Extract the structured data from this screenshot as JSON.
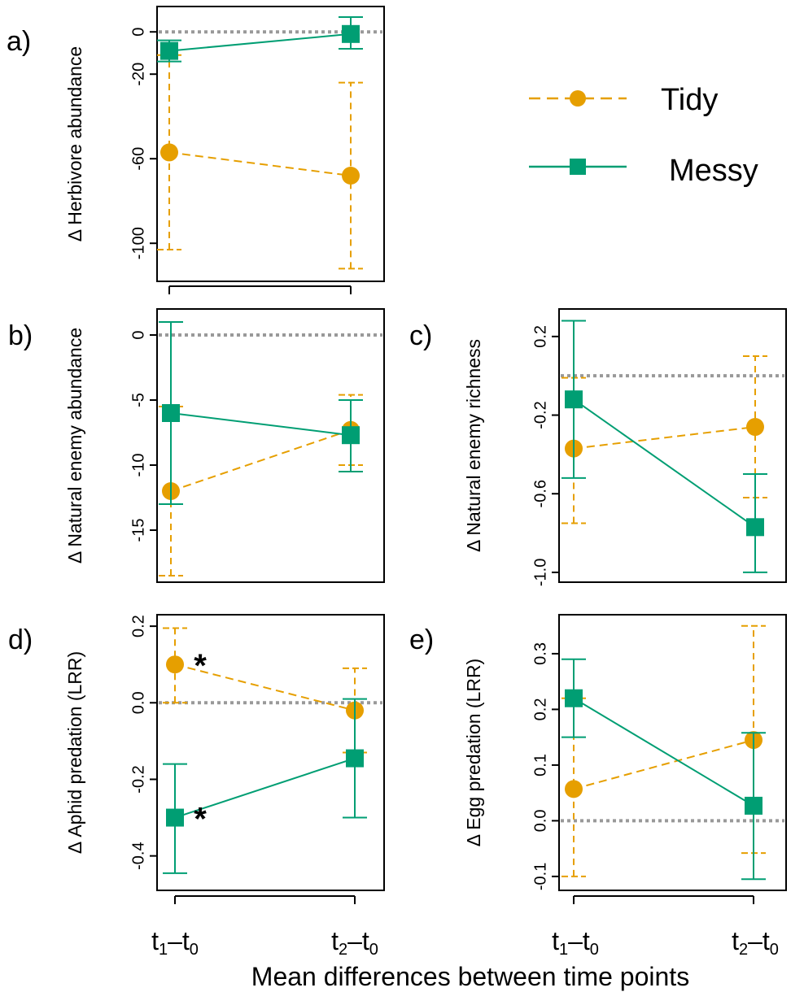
{
  "colors": {
    "tidy": "#E69F00",
    "messy": "#009E73",
    "ref": "#999999",
    "axis": "#000000"
  },
  "legend": {
    "placement": "top-right",
    "entries": [
      {
        "key": "tidy",
        "label": "Tidy",
        "marker": "circle",
        "line": "dashed"
      },
      {
        "key": "messy",
        "label": "Messy",
        "marker": "square",
        "line": "solid"
      }
    ]
  },
  "xaxis": {
    "title": "Mean differences between time points",
    "categories": [
      {
        "main1": "t",
        "sub1": "1",
        "dash": "–",
        "main2": "t",
        "sub2": "0"
      },
      {
        "main1": "t",
        "sub1": "2",
        "dash": "–",
        "main2": "t",
        "sub2": "0"
      }
    ]
  },
  "chart_data": [
    {
      "panel": "a)",
      "type": "line",
      "ylabel": "Δ  Herbivore abundance",
      "ylim": [
        -118,
        12
      ],
      "yticks": [
        0,
        -20,
        -60,
        -100
      ],
      "categories": [
        "t1–t0",
        "t2–t0"
      ],
      "series": [
        {
          "name": "Tidy",
          "values": [
            -57,
            -68
          ],
          "lower": [
            -103,
            -112
          ],
          "upper": [
            -11,
            -24
          ]
        },
        {
          "name": "Messy",
          "values": [
            -9,
            -1
          ],
          "lower": [
            -14,
            -8
          ],
          "upper": [
            -4,
            7
          ]
        }
      ],
      "annotations": []
    },
    {
      "panel": "b)",
      "type": "line",
      "ylabel": "Δ  Natural enemy abundance",
      "ylim": [
        -19,
        2
      ],
      "yticks": [
        0,
        -5,
        -10,
        -15
      ],
      "categories": [
        "t1–t0",
        "t2–t0"
      ],
      "series": [
        {
          "name": "Tidy",
          "values": [
            -12,
            -7.3
          ],
          "lower": [
            -18.5,
            -10
          ],
          "upper": [
            -5.5,
            -4.6
          ]
        },
        {
          "name": "Messy",
          "values": [
            -6,
            -7.7
          ],
          "lower": [
            -13,
            -10.5
          ],
          "upper": [
            1,
            -5
          ]
        }
      ],
      "annotations": []
    },
    {
      "panel": "c)",
      "type": "line",
      "ylabel": "Δ  Natural enemy richness",
      "ylim": [
        -1.05,
        0.34
      ],
      "yticks": [
        0.2,
        -0.2,
        -0.6,
        -1.0
      ],
      "yticklabels": [
        "0.2",
        "-0.2",
        "-0.6",
        "-1.0"
      ],
      "categories": [
        "t1–t0",
        "t2–t0"
      ],
      "series": [
        {
          "name": "Tidy",
          "values": [
            -0.37,
            -0.26
          ],
          "lower": [
            -0.75,
            -0.62
          ],
          "upper": [
            -0.01,
            0.1
          ]
        },
        {
          "name": "Messy",
          "values": [
            -0.12,
            -0.77
          ],
          "lower": [
            -0.52,
            -1.0
          ],
          "upper": [
            0.28,
            -0.5
          ]
        }
      ],
      "annotations": []
    },
    {
      "panel": "d)",
      "type": "line",
      "ylabel": "Δ  Aphid predation (LRR)",
      "ylim": [
        -0.49,
        0.23
      ],
      "yticks": [
        0.2,
        0.0,
        -0.2,
        -0.4
      ],
      "yticklabels": [
        "0.2",
        "0.0",
        "-0.2",
        "-0.4"
      ],
      "categories": [
        "t1–t0",
        "t2–t0"
      ],
      "series": [
        {
          "name": "Tidy",
          "values": [
            0.1,
            -0.02
          ],
          "lower": [
            0.0,
            -0.13
          ],
          "upper": [
            0.195,
            0.09
          ]
        },
        {
          "name": "Messy",
          "values": [
            -0.3,
            -0.145
          ],
          "lower": [
            -0.445,
            -0.3
          ],
          "upper": [
            -0.16,
            0.01
          ]
        }
      ],
      "annotations": [
        {
          "text": "*",
          "category": 0,
          "y": 0.115,
          "series": "Tidy"
        },
        {
          "text": "*",
          "category": 0,
          "y": -0.285,
          "series": "Messy"
        }
      ]
    },
    {
      "panel": "e)",
      "type": "line",
      "ylabel": "Δ  Egg predation (LRR)",
      "ylim": [
        -0.125,
        0.37
      ],
      "yticks": [
        0.3,
        0.2,
        0.1,
        0.0,
        -0.1
      ],
      "yticklabels": [
        "0.3",
        "0.2",
        "0.1",
        "0.0",
        "-0.1"
      ],
      "categories": [
        "t1–t0",
        "t2–t0"
      ],
      "series": [
        {
          "name": "Tidy",
          "values": [
            0.057,
            0.145
          ],
          "lower": [
            -0.1,
            -0.058
          ],
          "upper": [
            0.22,
            0.35
          ]
        },
        {
          "name": "Messy",
          "values": [
            0.22,
            0.027
          ],
          "lower": [
            0.15,
            -0.105
          ],
          "upper": [
            0.29,
            0.158
          ]
        }
      ],
      "annotations": []
    }
  ]
}
